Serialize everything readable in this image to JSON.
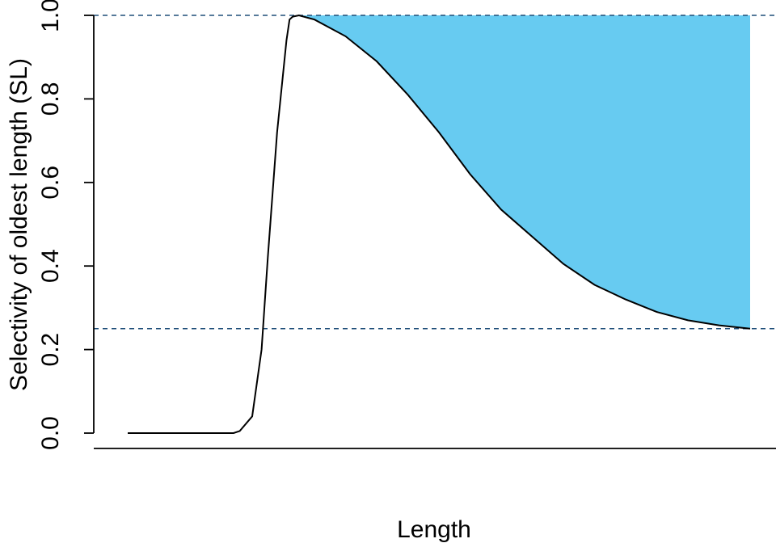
{
  "chart_data": {
    "type": "area",
    "title": "",
    "xlabel": "Length",
    "ylabel": "Selectivity of oldest length (SL)",
    "x_tick_labels": [],
    "y_ticks": [
      0.0,
      0.2,
      0.4,
      0.6,
      0.8,
      1.0
    ],
    "y_tick_labels": [
      "0.0",
      "0.2",
      "0.4",
      "0.6",
      "0.8",
      "1.0"
    ],
    "ylim": [
      0,
      1
    ],
    "grid": false,
    "legend": "none",
    "colors": {
      "fill": "#67CBF1",
      "curve": "#000000",
      "reference_line": "#1F4E79"
    },
    "reference_lines": [
      {
        "y": 1.0,
        "style": "dashed"
      },
      {
        "y": 0.25,
        "style": "dashed"
      }
    ],
    "series": [
      {
        "x": [
          0.0,
          0.1,
          0.17,
          0.18,
          0.2,
          0.215,
          0.225,
          0.24,
          0.255,
          0.26,
          0.265,
          0.275,
          0.3,
          0.35,
          0.4,
          0.45,
          0.5,
          0.55,
          0.6,
          0.65,
          0.7,
          0.75,
          0.8,
          0.85,
          0.9,
          0.95,
          1.0
        ],
        "y": [
          0.0,
          0.0,
          0.0,
          0.005,
          0.04,
          0.2,
          0.42,
          0.72,
          0.94,
          0.99,
          0.997,
          1.0,
          0.99,
          0.95,
          0.89,
          0.81,
          0.72,
          0.62,
          0.535,
          0.47,
          0.405,
          0.355,
          0.32,
          0.29,
          0.27,
          0.258,
          0.25
        ]
      }
    ],
    "shaded_region": {
      "between": "curve and y=1.0",
      "x_from": 0.275,
      "x_to": 1.0
    }
  }
}
